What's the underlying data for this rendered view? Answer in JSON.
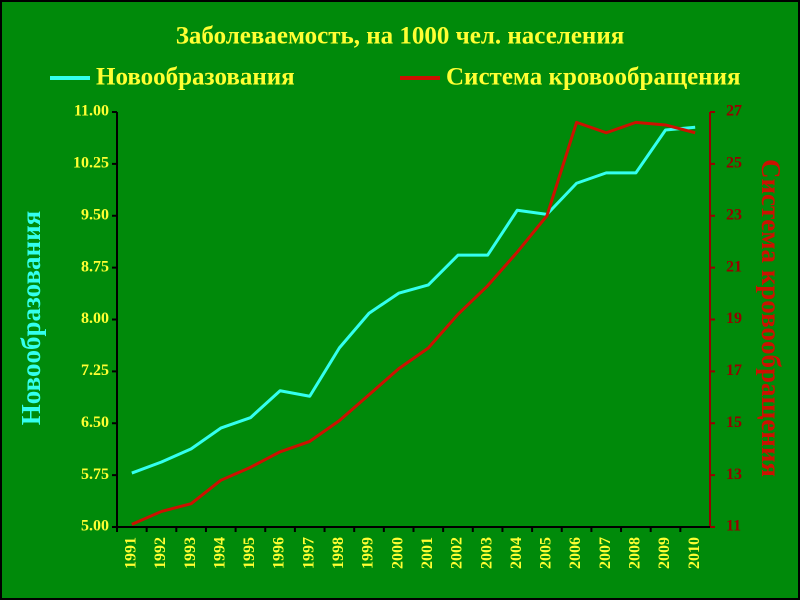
{
  "chart_data": {
    "type": "line",
    "title": "Заболеваемость, на 1000 чел. населения",
    "categories": [
      "1991",
      "1992",
      "1993",
      "1994",
      "1995",
      "1996",
      "1997",
      "1998",
      "1999",
      "2000",
      "2001",
      "2002",
      "2003",
      "2004",
      "2005",
      "2006",
      "2007",
      "2008",
      "2009",
      "2010"
    ],
    "series": [
      {
        "name": "Новообразования",
        "color": "#33ffee",
        "values": [
          5.78,
          5.94,
          6.13,
          6.43,
          6.58,
          6.97,
          6.89,
          7.59,
          8.09,
          8.38,
          8.5,
          8.93,
          8.93,
          9.58,
          9.52,
          9.97,
          10.12,
          10.12,
          10.74,
          10.78
        ]
      },
      {
        "name": "Система кровообращения",
        "color": "#cc1100",
        "axis": "y2",
        "values": [
          11.1,
          11.6,
          11.9,
          12.8,
          13.3,
          13.9,
          14.3,
          15.1,
          16.1,
          17.1,
          17.9,
          19.2,
          20.3,
          21.6,
          23.0,
          26.6,
          26.2,
          26.6,
          26.5,
          26.2
        ]
      }
    ],
    "y_label": "Новообразования",
    "y2_label": "Система кровообращения",
    "ylim": [
      5,
      11
    ],
    "yticks": [
      {
        "value": 5,
        "label": "5.00"
      },
      5.75,
      {
        "value": 6.5,
        "label": "6.50"
      },
      7.25,
      {
        "value": 8,
        "label": "8.00"
      },
      8.75,
      {
        "value": 9.5,
        "label": "9.50"
      },
      10.25,
      {
        "value": 11,
        "label": "11.00"
      }
    ],
    "y2lim": [
      11,
      27
    ],
    "y2ticks": [
      11,
      13,
      15,
      17,
      19,
      21,
      23,
      25,
      27
    ],
    "grid": false,
    "legend": "top"
  }
}
